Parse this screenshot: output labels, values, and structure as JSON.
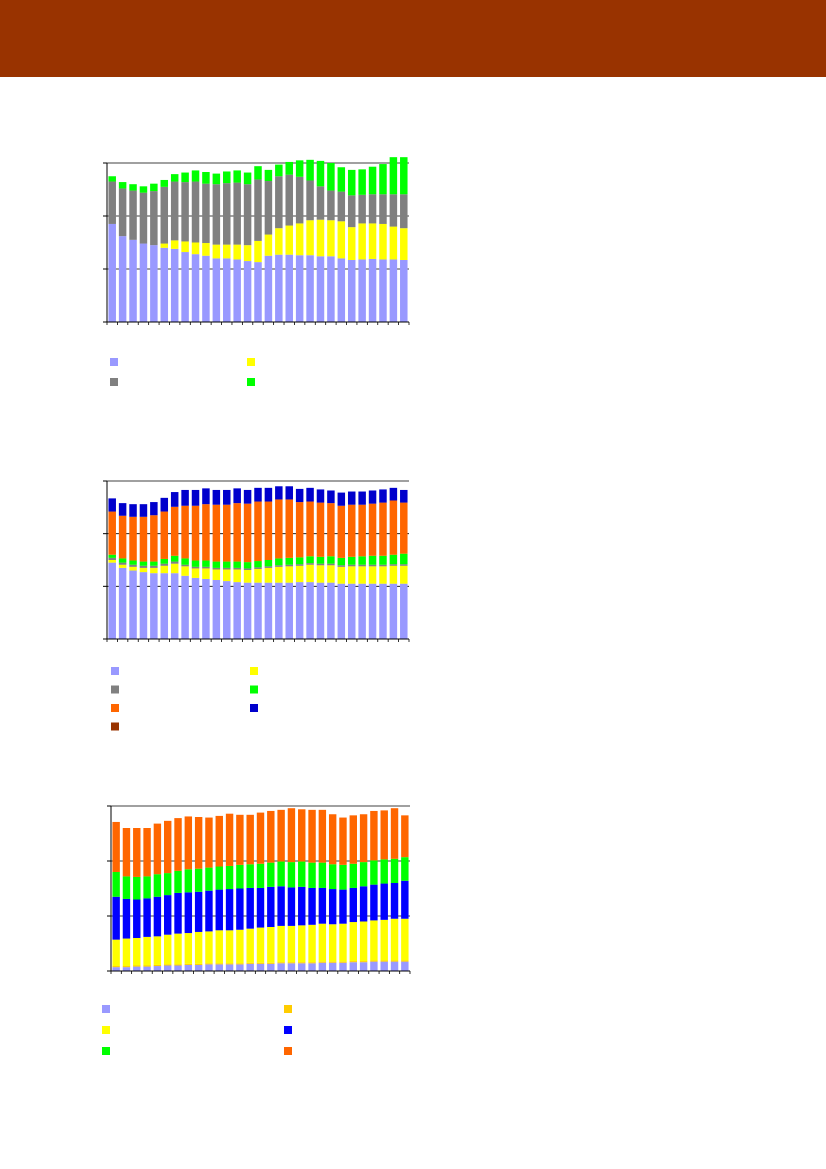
{
  "page": {
    "header_color": "#993300"
  },
  "chart_data": [
    {
      "type": "bar",
      "stacked": true,
      "ylim": [
        0,
        3
      ],
      "grid": true,
      "legend_position": "bottom",
      "series": [
        {
          "color": "#9999ff",
          "values": [
            1.85,
            1.62,
            1.55,
            1.48,
            1.45,
            1.4,
            1.38,
            1.32,
            1.28,
            1.25,
            1.2,
            1.2,
            1.18,
            1.15,
            1.13,
            1.25,
            1.27,
            1.27,
            1.26,
            1.26,
            1.24,
            1.24,
            1.2,
            1.17,
            1.18,
            1.19,
            1.18,
            1.18,
            1.17
          ]
        },
        {
          "color": "#ffff00",
          "values": [
            0.0,
            0.0,
            0.0,
            0.0,
            0.0,
            0.08,
            0.16,
            0.2,
            0.22,
            0.24,
            0.26,
            0.26,
            0.28,
            0.3,
            0.4,
            0.4,
            0.5,
            0.55,
            0.6,
            0.66,
            0.69,
            0.68,
            0.7,
            0.62,
            0.68,
            0.67,
            0.67,
            0.62,
            0.6
          ]
        },
        {
          "color": "#808080",
          "values": [
            0.8,
            0.9,
            0.93,
            0.96,
            1.02,
            1.07,
            1.11,
            1.12,
            1.15,
            1.12,
            1.14,
            1.16,
            1.17,
            1.15,
            1.16,
            1.01,
            0.98,
            0.96,
            0.88,
            0.75,
            0.63,
            0.56,
            0.56,
            0.6,
            0.54,
            0.55,
            0.56,
            0.61,
            0.64
          ]
        },
        {
          "color": "#00ff00",
          "values": [
            0.1,
            0.12,
            0.12,
            0.12,
            0.14,
            0.13,
            0.14,
            0.18,
            0.21,
            0.22,
            0.2,
            0.22,
            0.23,
            0.22,
            0.25,
            0.21,
            0.22,
            0.24,
            0.31,
            0.39,
            0.48,
            0.52,
            0.46,
            0.48,
            0.48,
            0.52,
            0.57,
            0.7,
            0.7
          ]
        }
      ],
      "legend": [
        {
          "color": "#9999ff",
          "label": ""
        },
        {
          "color": "#ffff00",
          "label": ""
        },
        {
          "color": "#808080",
          "label": ""
        },
        {
          "color": "#00ff00",
          "label": ""
        }
      ]
    },
    {
      "type": "bar",
      "stacked": true,
      "ylim": [
        0,
        3
      ],
      "grid": true,
      "legend_position": "bottom",
      "series": [
        {
          "color": "#9999ff",
          "values": [
            1.45,
            1.35,
            1.3,
            1.27,
            1.25,
            1.25,
            1.25,
            1.2,
            1.16,
            1.14,
            1.12,
            1.1,
            1.08,
            1.07,
            1.07,
            1.07,
            1.07,
            1.07,
            1.08,
            1.08,
            1.07,
            1.07,
            1.05,
            1.05,
            1.05,
            1.05,
            1.05,
            1.05,
            1.05
          ]
        },
        {
          "color": "#ffff00",
          "values": [
            0.05,
            0.06,
            0.07,
            0.08,
            0.1,
            0.14,
            0.18,
            0.18,
            0.18,
            0.2,
            0.2,
            0.22,
            0.24,
            0.24,
            0.26,
            0.28,
            0.3,
            0.31,
            0.31,
            0.33,
            0.33,
            0.33,
            0.32,
            0.33,
            0.33,
            0.33,
            0.33,
            0.34,
            0.34
          ]
        },
        {
          "color": "#808080",
          "values": [
            0.04,
            0.04,
            0.04,
            0.04,
            0.04,
            0.04,
            0.04,
            0.03,
            0.03,
            0.03,
            0.03,
            0.03,
            0.03,
            0.03,
            0.03,
            0.03,
            0.03,
            0.03,
            0.03,
            0.03,
            0.03,
            0.03,
            0.03,
            0.03,
            0.03,
            0.03,
            0.03,
            0.03,
            0.03
          ]
        },
        {
          "color": "#00ff00",
          "values": [
            0.06,
            0.08,
            0.08,
            0.08,
            0.08,
            0.09,
            0.11,
            0.12,
            0.12,
            0.12,
            0.12,
            0.12,
            0.12,
            0.12,
            0.12,
            0.12,
            0.13,
            0.13,
            0.13,
            0.13,
            0.13,
            0.14,
            0.14,
            0.15,
            0.16,
            0.17,
            0.17,
            0.18,
            0.2
          ]
        },
        {
          "color": "#ff6600",
          "values": [
            0.82,
            0.81,
            0.83,
            0.85,
            0.88,
            0.9,
            0.93,
            1.0,
            1.04,
            1.07,
            1.08,
            1.08,
            1.11,
            1.11,
            1.13,
            1.11,
            1.12,
            1.11,
            1.05,
            1.04,
            1.03,
            1.01,
            0.99,
            0.99,
            0.98,
            0.99,
            1.01,
            1.03,
            0.97
          ]
        },
        {
          "color": "#0000cc",
          "values": [
            0.25,
            0.24,
            0.24,
            0.24,
            0.25,
            0.26,
            0.28,
            0.3,
            0.3,
            0.3,
            0.28,
            0.28,
            0.28,
            0.26,
            0.26,
            0.26,
            0.25,
            0.25,
            0.25,
            0.26,
            0.25,
            0.24,
            0.25,
            0.25,
            0.25,
            0.25,
            0.25,
            0.24,
            0.24
          ]
        },
        {
          "color": "#993300",
          "values": [
            0.0,
            0.0,
            0.0,
            0.0,
            0.0,
            0.0,
            0.0,
            0.0,
            0.0,
            0.0,
            0.0,
            0.0,
            0.0,
            0.0,
            0.0,
            0.0,
            0.0,
            0.0,
            0.0,
            0.0,
            0.0,
            0.0,
            0.0,
            0.0,
            0.0,
            0.0,
            0.0,
            0.0,
            0.0
          ]
        }
      ],
      "legend": [
        {
          "color": "#9999ff",
          "label": ""
        },
        {
          "color": "#ffff00",
          "label": ""
        },
        {
          "color": "#808080",
          "label": ""
        },
        {
          "color": "#00ff00",
          "label": ""
        },
        {
          "color": "#ff6600",
          "label": ""
        },
        {
          "color": "#0000cc",
          "label": ""
        },
        {
          "color": "#993300",
          "label": ""
        }
      ]
    },
    {
      "type": "bar",
      "stacked": true,
      "ylim": [
        0,
        3
      ],
      "grid": true,
      "legend_position": "bottom",
      "series": [
        {
          "color": "#9999ff",
          "values": [
            0.07,
            0.07,
            0.08,
            0.08,
            0.09,
            0.1,
            0.1,
            0.11,
            0.11,
            0.12,
            0.12,
            0.12,
            0.12,
            0.13,
            0.13,
            0.13,
            0.14,
            0.14,
            0.14,
            0.14,
            0.15,
            0.15,
            0.15,
            0.16,
            0.16,
            0.17,
            0.17,
            0.17,
            0.17
          ]
        },
        {
          "color": "#ffcc00",
          "values": [
            0.02,
            0.02,
            0.02,
            0.02,
            0.02,
            0.02,
            0.02,
            0.02,
            0.02,
            0.02,
            0.02,
            0.02,
            0.02,
            0.02,
            0.02,
            0.02,
            0.02,
            0.02,
            0.02,
            0.02,
            0.02,
            0.02,
            0.02,
            0.02,
            0.02,
            0.02,
            0.02,
            0.02,
            0.02
          ]
        },
        {
          "color": "#ffff00",
          "values": [
            0.48,
            0.5,
            0.5,
            0.52,
            0.52,
            0.54,
            0.56,
            0.56,
            0.58,
            0.58,
            0.6,
            0.6,
            0.61,
            0.62,
            0.64,
            0.65,
            0.66,
            0.66,
            0.67,
            0.68,
            0.69,
            0.68,
            0.69,
            0.71,
            0.72,
            0.73,
            0.74,
            0.76,
            0.76
          ]
        },
        {
          "color": "#0000ff",
          "values": [
            0.78,
            0.72,
            0.7,
            0.7,
            0.72,
            0.72,
            0.74,
            0.74,
            0.73,
            0.74,
            0.74,
            0.75,
            0.75,
            0.74,
            0.72,
            0.73,
            0.72,
            0.7,
            0.7,
            0.67,
            0.65,
            0.64,
            0.62,
            0.62,
            0.64,
            0.65,
            0.66,
            0.65,
            0.69
          ]
        },
        {
          "color": "#00ff00",
          "values": [
            0.45,
            0.41,
            0.41,
            0.4,
            0.41,
            0.4,
            0.4,
            0.42,
            0.42,
            0.42,
            0.42,
            0.42,
            0.43,
            0.43,
            0.44,
            0.44,
            0.45,
            0.46,
            0.46,
            0.46,
            0.46,
            0.45,
            0.45,
            0.44,
            0.44,
            0.44,
            0.44,
            0.44,
            0.43
          ]
        },
        {
          "color": "#ff6600",
          "values": [
            0.91,
            0.88,
            0.89,
            0.88,
            0.92,
            0.95,
            0.96,
            0.96,
            0.94,
            0.91,
            0.92,
            0.95,
            0.91,
            0.9,
            0.93,
            0.94,
            0.94,
            0.98,
            0.95,
            0.96,
            0.96,
            0.91,
            0.86,
            0.88,
            0.87,
            0.9,
            0.89,
            0.92,
            0.76
          ]
        }
      ],
      "legend": [
        {
          "color": "#9999ff",
          "label": ""
        },
        {
          "color": "#ffcc00",
          "label": ""
        },
        {
          "color": "#ffff00",
          "label": ""
        },
        {
          "color": "#0000ff",
          "label": ""
        },
        {
          "color": "#00ff00",
          "label": ""
        },
        {
          "color": "#ff6600",
          "label": ""
        }
      ]
    }
  ]
}
